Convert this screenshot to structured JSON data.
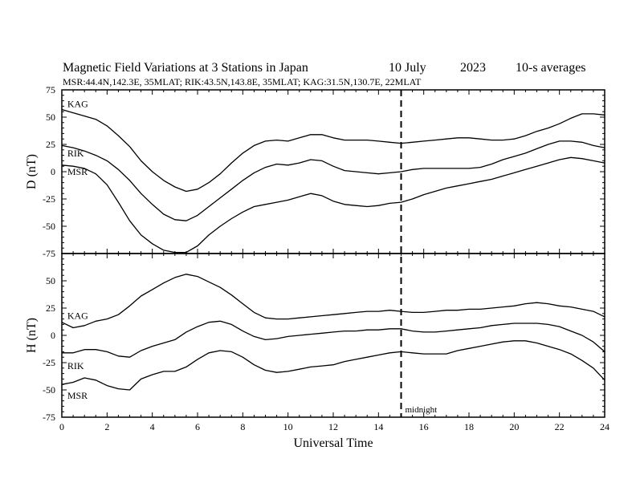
{
  "title": {
    "main": "Magnetic Field Variations at 3 Stations in Japan",
    "date": "10 July",
    "year": "2023",
    "averaging": "10-s averages",
    "stations_line": "MSR:44.4N,142.3E, 35MLAT;  RIK:43.5N,143.8E, 35MLAT;  KAG:31.5N,130.7E, 22MLAT"
  },
  "marker_label": "midnight",
  "chart_data": [
    {
      "type": "line",
      "panel": "D",
      "ylabel": "D (nT)",
      "xlabel": "",
      "xlim": [
        0,
        24
      ],
      "ylim": [
        -75,
        75
      ],
      "yticks": [
        75,
        50,
        25,
        0,
        -25,
        -50,
        -75
      ],
      "xticks": [
        0,
        2,
        4,
        6,
        8,
        10,
        12,
        14,
        16,
        18,
        20,
        22,
        24
      ],
      "vertical_marker_x": 15,
      "series": [
        {
          "name": "KAG",
          "x": [
            0,
            0.5,
            1,
            1.5,
            2,
            2.5,
            3,
            3.5,
            4,
            4.5,
            5,
            5.5,
            6,
            6.5,
            7,
            7.5,
            8,
            8.5,
            9,
            9.5,
            10,
            10.5,
            11,
            11.5,
            12,
            12.5,
            13,
            13.5,
            14,
            14.5,
            15,
            15.5,
            16,
            16.5,
            17,
            17.5,
            18,
            18.5,
            19,
            19.5,
            20,
            20.5,
            21,
            21.5,
            22,
            22.5,
            23,
            23.5,
            24
          ],
          "values": [
            57,
            54,
            51,
            48,
            42,
            33,
            23,
            10,
            0,
            -8,
            -14,
            -18,
            -16,
            -10,
            -2,
            8,
            17,
            24,
            28,
            29,
            28,
            31,
            34,
            34,
            31,
            29,
            29,
            29,
            28,
            27,
            26,
            27,
            28,
            29,
            30,
            31,
            31,
            30,
            29,
            29,
            30,
            33,
            37,
            40,
            44,
            49,
            53,
            53,
            52
          ]
        },
        {
          "name": "RIK",
          "x": [
            0,
            0.5,
            1,
            1.5,
            2,
            2.5,
            3,
            3.5,
            4,
            4.5,
            5,
            5.5,
            6,
            6.5,
            7,
            7.5,
            8,
            8.5,
            9,
            9.5,
            10,
            10.5,
            11,
            11.5,
            12,
            12.5,
            13,
            13.5,
            14,
            14.5,
            15,
            15.5,
            16,
            16.5,
            17,
            17.5,
            18,
            18.5,
            19,
            19.5,
            20,
            20.5,
            21,
            21.5,
            22,
            22.5,
            23,
            23.5,
            24
          ],
          "values": [
            24,
            22,
            19,
            15,
            10,
            2,
            -8,
            -20,
            -30,
            -39,
            -44,
            -45,
            -40,
            -32,
            -24,
            -16,
            -8,
            -1,
            4,
            7,
            6,
            8,
            11,
            10,
            5,
            1,
            0,
            -1,
            -2,
            -1,
            0,
            2,
            3,
            3,
            3,
            3,
            3,
            4,
            7,
            11,
            14,
            17,
            21,
            25,
            28,
            28,
            27,
            24,
            22
          ]
        },
        {
          "name": "MSR",
          "x": [
            0,
            0.5,
            1,
            1.5,
            2,
            2.5,
            3,
            3.5,
            4,
            4.5,
            5,
            5.5,
            6,
            6.5,
            7,
            7.5,
            8,
            8.5,
            9,
            9.5,
            10,
            10.5,
            11,
            11.5,
            12,
            12.5,
            13,
            13.5,
            14,
            14.5,
            15,
            15.5,
            16,
            16.5,
            17,
            17.5,
            18,
            18.5,
            19,
            19.5,
            20,
            20.5,
            21,
            21.5,
            22,
            22.5,
            23,
            23.5,
            24
          ],
          "values": [
            6,
            5,
            3,
            -2,
            -12,
            -28,
            -45,
            -58,
            -66,
            -72,
            -74,
            -74,
            -68,
            -58,
            -50,
            -43,
            -37,
            -32,
            -30,
            -28,
            -26,
            -23,
            -20,
            -22,
            -27,
            -30,
            -31,
            -32,
            -31,
            -29,
            -28,
            -25,
            -21,
            -18,
            -15,
            -13,
            -11,
            -9,
            -7,
            -4,
            -1,
            2,
            5,
            8,
            11,
            13,
            12,
            10,
            8
          ]
        }
      ]
    },
    {
      "type": "line",
      "panel": "H",
      "ylabel": "H (nT)",
      "xlabel": "Universal Time",
      "xlim": [
        0,
        24
      ],
      "ylim": [
        -75,
        75
      ],
      "yticks": [
        50,
        25,
        0,
        -25,
        -50,
        -75
      ],
      "xticks": [
        0,
        2,
        4,
        6,
        8,
        10,
        12,
        14,
        16,
        18,
        20,
        22,
        24
      ],
      "xticklabels": [
        "0",
        "2",
        "4",
        "6",
        "8",
        "10",
        "12",
        "14",
        "16",
        "18",
        "20",
        "22",
        "24"
      ],
      "vertical_marker_x": 15,
      "series": [
        {
          "name": "KAG",
          "x": [
            0,
            0.5,
            1,
            1.5,
            2,
            2.5,
            3,
            3.5,
            4,
            4.5,
            5,
            5.5,
            6,
            6.5,
            7,
            7.5,
            8,
            8.5,
            9,
            9.5,
            10,
            10.5,
            11,
            11.5,
            12,
            12.5,
            13,
            13.5,
            14,
            14.5,
            15,
            15.5,
            16,
            16.5,
            17,
            17.5,
            18,
            18.5,
            19,
            19.5,
            20,
            20.5,
            21,
            21.5,
            22,
            22.5,
            23,
            23.5,
            24
          ],
          "values": [
            12,
            7,
            9,
            13,
            15,
            19,
            27,
            36,
            42,
            48,
            53,
            56,
            54,
            49,
            44,
            37,
            29,
            21,
            16,
            15,
            15,
            16,
            17,
            18,
            19,
            20,
            21,
            22,
            22,
            23,
            22,
            21,
            21,
            22,
            23,
            23,
            24,
            24,
            25,
            26,
            27,
            29,
            30,
            29,
            27,
            26,
            24,
            22,
            17
          ]
        },
        {
          "name": "RIK",
          "x": [
            0,
            0.5,
            1,
            1.5,
            2,
            2.5,
            3,
            3.5,
            4,
            4.5,
            5,
            5.5,
            6,
            6.5,
            7,
            7.5,
            8,
            8.5,
            9,
            9.5,
            10,
            10.5,
            11,
            11.5,
            12,
            12.5,
            13,
            13.5,
            14,
            14.5,
            15,
            15.5,
            16,
            16.5,
            17,
            17.5,
            18,
            18.5,
            19,
            19.5,
            20,
            20.5,
            21,
            21.5,
            22,
            22.5,
            23,
            23.5,
            24
          ],
          "values": [
            -16,
            -16,
            -13,
            -13,
            -15,
            -19,
            -20,
            -14,
            -10,
            -7,
            -4,
            3,
            8,
            12,
            13,
            10,
            4,
            -1,
            -4,
            -3,
            -1,
            0,
            1,
            2,
            3,
            4,
            4,
            5,
            5,
            6,
            6,
            4,
            3,
            3,
            4,
            5,
            6,
            7,
            9,
            10,
            11,
            11,
            11,
            10,
            8,
            4,
            0,
            -6,
            -15
          ]
        },
        {
          "name": "MSR",
          "x": [
            0,
            0.5,
            1,
            1.5,
            2,
            2.5,
            3,
            3.5,
            4,
            4.5,
            5,
            5.5,
            6,
            6.5,
            7,
            7.5,
            8,
            8.5,
            9,
            9.5,
            10,
            10.5,
            11,
            11.5,
            12,
            12.5,
            13,
            13.5,
            14,
            14.5,
            15,
            15.5,
            16,
            16.5,
            17,
            17.5,
            18,
            18.5,
            19,
            19.5,
            20,
            20.5,
            21,
            21.5,
            22,
            22.5,
            23,
            23.5,
            24
          ],
          "values": [
            -45,
            -43,
            -39,
            -41,
            -46,
            -49,
            -50,
            -40,
            -36,
            -33,
            -33,
            -29,
            -22,
            -16,
            -14,
            -15,
            -20,
            -27,
            -32,
            -34,
            -33,
            -31,
            -29,
            -28,
            -27,
            -24,
            -22,
            -20,
            -18,
            -16,
            -15,
            -16,
            -17,
            -17,
            -17,
            -14,
            -12,
            -10,
            -8,
            -6,
            -5,
            -5,
            -7,
            -10,
            -13,
            -17,
            -23,
            -30,
            -41
          ]
        }
      ]
    }
  ]
}
